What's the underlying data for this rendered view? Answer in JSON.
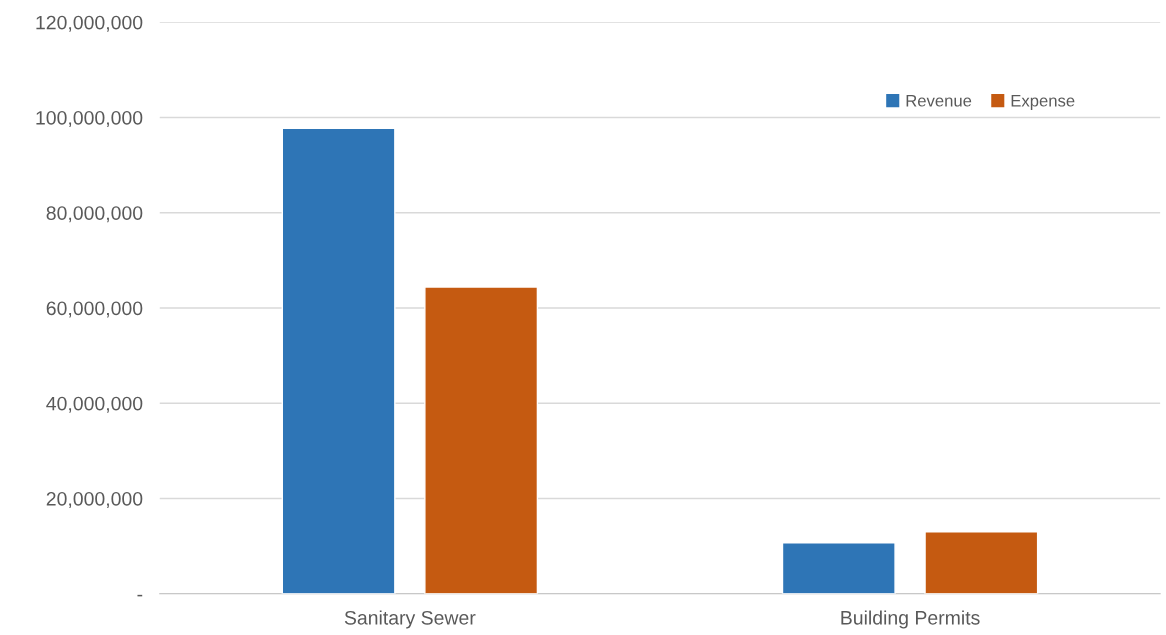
{
  "chart_data": {
    "type": "bar",
    "categories": [
      "Sanitary Sewer",
      "Building Permits"
    ],
    "series": [
      {
        "name": "Revenue",
        "color": "#2e75b6",
        "values": [
          97700000,
          10700000
        ]
      },
      {
        "name": "Expense",
        "color": "#c55a11",
        "values": [
          64400000,
          13000000
        ]
      }
    ],
    "ylim": [
      0,
      120000000
    ],
    "yticks": [
      {
        "value": 0,
        "label": "-"
      },
      {
        "value": 20000000,
        "label": "20,000,000"
      },
      {
        "value": 40000000,
        "label": "40,000,000"
      },
      {
        "value": 60000000,
        "label": "60,000,000"
      },
      {
        "value": 80000000,
        "label": "80,000,000"
      },
      {
        "value": 100000000,
        "label": "100,000,000"
      },
      {
        "value": 120000000,
        "label": "120,000,000"
      }
    ],
    "grid": "y",
    "legend": "top right"
  }
}
